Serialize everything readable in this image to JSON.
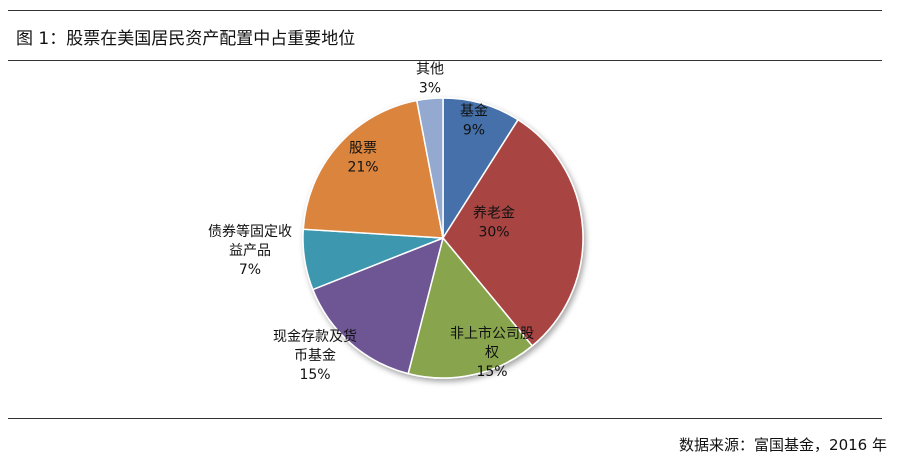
{
  "header": {
    "title": "图 1：股票在美国居民资产配置中占重要地位"
  },
  "footer": {
    "source": "数据来源：富国基金，2016 年"
  },
  "chart_data": {
    "type": "pie",
    "title": "",
    "start_angle_deg": 0,
    "direction": "clockwise",
    "slices": [
      {
        "name": "基金",
        "label_lines": [
          "基金",
          "9%"
        ],
        "value": 9,
        "color": "#4570a9"
      },
      {
        "name": "养老金",
        "label_lines": [
          "养老金",
          "30%"
        ],
        "value": 30,
        "color": "#a84442"
      },
      {
        "name": "非上市公司股权",
        "label_lines": [
          "非上市公司股",
          "权",
          "15%"
        ],
        "value": 15,
        "color": "#88a54d"
      },
      {
        "name": "现金存款及货币基金",
        "label_lines": [
          "现金存款及货",
          "币基金",
          "15%"
        ],
        "value": 15,
        "color": "#6e5594"
      },
      {
        "name": "债券等固定收益产品",
        "label_lines": [
          "债券等固定收",
          "益产品",
          "7%"
        ],
        "value": 7,
        "color": "#3d97ae"
      },
      {
        "name": "股票",
        "label_lines": [
          "股票",
          "21%"
        ],
        "value": 21,
        "color": "#db843d"
      },
      {
        "name": "其他",
        "label_lines": [
          "其他",
          "3%"
        ],
        "value": 3,
        "color": "#93a9cf"
      }
    ]
  }
}
